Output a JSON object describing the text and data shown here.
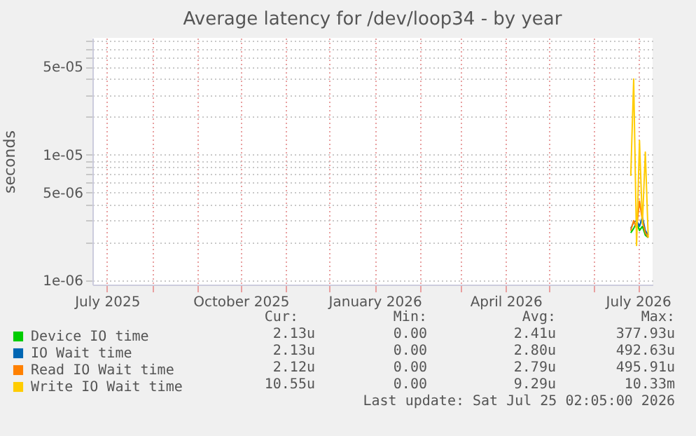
{
  "chart_data": {
    "type": "line",
    "title": "Average latency for /dev/loop34 - by year",
    "ylabel": "seconds",
    "x": [
      "2026-06-26",
      "2026-06-28",
      "2026-06-30",
      "2026-07-02",
      "2026-07-04",
      "2026-07-06",
      "2026-07-08"
    ],
    "series": [
      {
        "name": "Device IO time",
        "color": "#00cc00",
        "values": [
          2.4e-06,
          2.6e-06,
          2.9e-06,
          2.5e-06,
          2.7e-06,
          2.3e-06,
          2.2e-06
        ]
      },
      {
        "name": "IO Wait time",
        "color": "#0066b3",
        "values": [
          2.6e-06,
          2.9e-06,
          3e-06,
          2.7e-06,
          3.2e-06,
          2.5e-06,
          2.3e-06
        ]
      },
      {
        "name": "Read IO Wait time",
        "color": "#ff8000",
        "values": [
          2.5e-06,
          3e-06,
          2.6e-06,
          4.3e-06,
          3e-06,
          2.4e-06,
          2.2e-06
        ]
      },
      {
        "name": "Write IO Wait time",
        "color": "#ffcc00",
        "values": [
          6.8e-06,
          4e-05,
          1.9e-06,
          1.3e-05,
          2.8e-06,
          1.05e-05,
          2.2e-06
        ]
      }
    ],
    "xlim": [
      "2025-06-21",
      "2026-07-11"
    ],
    "xticks": [
      {
        "value": "2025-07-01",
        "label": "July 2025"
      },
      {
        "value": "2025-08-01",
        "label": null
      },
      {
        "value": "2025-09-01",
        "label": null
      },
      {
        "value": "2025-10-01",
        "label": "October 2025"
      },
      {
        "value": "2025-11-01",
        "label": null
      },
      {
        "value": "2025-12-01",
        "label": null
      },
      {
        "value": "2026-01-01",
        "label": "January 2026"
      },
      {
        "value": "2026-02-01",
        "label": null
      },
      {
        "value": "2026-03-01",
        "label": null
      },
      {
        "value": "2026-04-01",
        "label": "April 2026"
      },
      {
        "value": "2026-05-01",
        "label": null
      },
      {
        "value": "2026-06-01",
        "label": null
      },
      {
        "value": "2026-07-01",
        "label": "July 2026"
      }
    ],
    "ylim": [
      9.3e-07,
      8.5e-05
    ],
    "yticks": [
      {
        "value": 1e-06,
        "label": "1e-06"
      },
      {
        "value": 2e-06,
        "label": null
      },
      {
        "value": 3e-06,
        "label": null
      },
      {
        "value": 4e-06,
        "label": null
      },
      {
        "value": 5e-06,
        "label": "5e-06"
      },
      {
        "value": 6e-06,
        "label": null
      },
      {
        "value": 7e-06,
        "label": null
      },
      {
        "value": 8e-06,
        "label": null
      },
      {
        "value": 9e-06,
        "label": null
      },
      {
        "value": 1e-05,
        "label": "1e-05"
      },
      {
        "value": 2e-05,
        "label": null
      },
      {
        "value": 3e-05,
        "label": null
      },
      {
        "value": 4e-05,
        "label": null
      },
      {
        "value": 5e-05,
        "label": "5e-05"
      },
      {
        "value": 6e-05,
        "label": null
      },
      {
        "value": 7e-05,
        "label": null
      },
      {
        "value": 8e-05,
        "label": null
      }
    ],
    "log": true,
    "grid": true,
    "legend": "bottom left",
    "marker": "none",
    "line_style": "solid",
    "annotations": [
      "Cur:",
      "Min:",
      "Avg:",
      "Max:",
      "2.13u",
      "0.00",
      "2.41u",
      "377.93u",
      "2.13u",
      "0.00",
      "2.80u",
      "492.63u",
      "2.12u",
      "0.00",
      "2.79u",
      "495.91u",
      "10.55u",
      "0.00",
      "9.29u",
      "10.33m",
      "Last update: Sat Jul 25 02:05:00 2026"
    ]
  }
}
